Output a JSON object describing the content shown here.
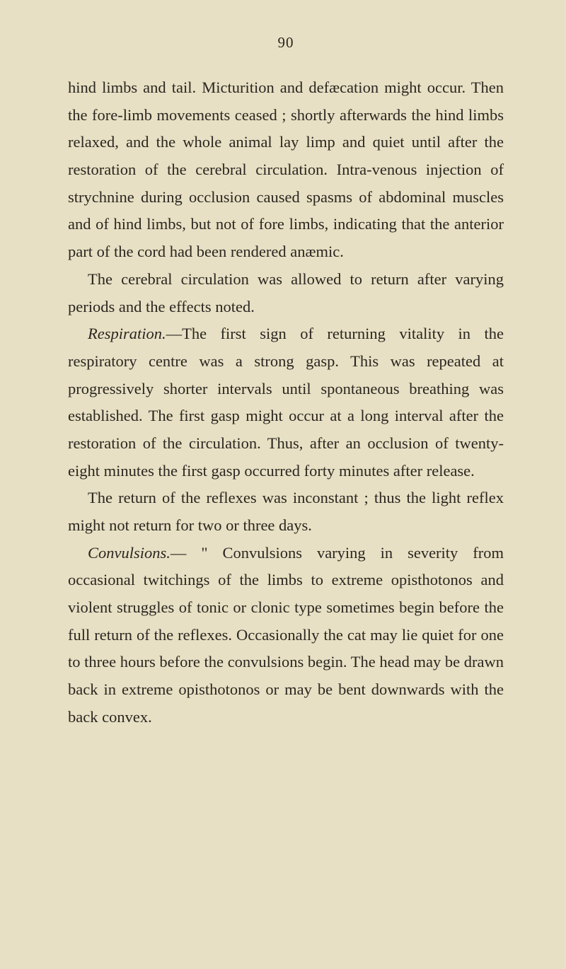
{
  "page": {
    "number": "90",
    "background_color": "#e8e0c4",
    "text_color": "#2a2620",
    "font_family": "Georgia, 'Times New Roman', serif",
    "body_fontsize": 22.5,
    "line_height": 1.72,
    "text_indent": 28
  },
  "paragraphs": {
    "p1": "hind limbs and tail. Micturition and defæcation might occur. Then the fore-limb movements ceased ; shortly afterwards the hind limbs relaxed, and the whole animal lay limp and quiet until after the restoration of the cerebral circulation. Intra-venous injection of strychnine during occlu­sion caused spasms of abdominal muscles and of hind limbs, but not of fore limbs, indicating that the anterior part of the cord had been rendered anæmic.",
    "p2": "The cerebral circulation was allowed to return after varying periods and the effects noted.",
    "p3_label": "Respiration.",
    "p3_rest": "—The first sign of returning vitality in the respiratory centre was a strong gasp. This was repeated at progressively shorter intervals until spontaneous breathing was established. The first gasp might occur at a long interval after the res­toration of the circulation. Thus, after an occlusion of twenty-eight minutes the first gasp occurred forty minutes after release.",
    "p4": "The return of the reflexes was inconstant ; thus the light reflex might not return for two or three days.",
    "p5_label": "Convulsions.",
    "p5_rest": "— \" Convulsions varying in severity from occasional twitchings of the limbs to extreme opisthotonos and violent struggles of tonic or clonic type sometimes begin before the full return of the re­flexes. Occasionally the cat may lie quiet for one to three hours before the convulsions begin. The head may be drawn back in extreme opisthotonos or may be bent downwards with the back convex."
  }
}
